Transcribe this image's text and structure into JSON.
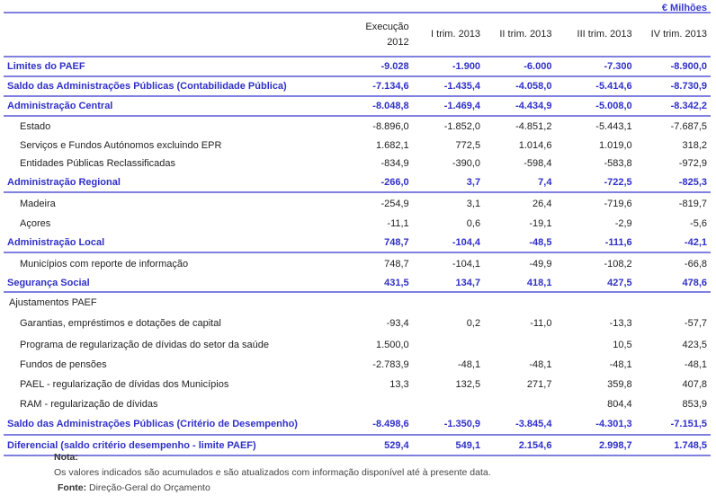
{
  "unit": "€ Milhões",
  "columns": [
    "",
    "Execução 2012",
    "I trim. 2013",
    "II trim. 2013",
    "III trim. 2013",
    "IV trim. 2013"
  ],
  "rows": [
    {
      "label": "Limites do PAEF",
      "style": "blue",
      "values": [
        "-9.028",
        "-1.900",
        "-6.000",
        "-7.300",
        "-8.900,0"
      ]
    },
    {
      "label": "Saldo das Administrações Públicas (Contabilidade Pública)",
      "style": "blue",
      "values": [
        "-7.134,6",
        "-1.435,4",
        "-4.058,0",
        "-5.414,6",
        "-8.730,9"
      ]
    },
    {
      "label": "Administração Central",
      "style": "blue",
      "values": [
        "-8.048,8",
        "-1.469,4",
        "-4.434,9",
        "-5.008,0",
        "-8.342,2"
      ]
    },
    {
      "label": "Estado",
      "style": "sub",
      "values": [
        "-8.896,0",
        "-1.852,0",
        "-4.851,2",
        "-5.443,1",
        "-7.687,5"
      ]
    },
    {
      "label": "Serviços e Fundos Autónomos excluindo EPR",
      "style": "sub",
      "values": [
        "1.682,1",
        "772,5",
        "1.014,6",
        "1.019,0",
        "318,2"
      ]
    },
    {
      "label": "Entidades Públicas Reclassificadas",
      "style": "sub",
      "values": [
        "-834,9",
        "-390,0",
        "-598,4",
        "-583,8",
        "-972,9"
      ]
    },
    {
      "label": "Administração Regional",
      "style": "blue",
      "values": [
        "-266,0",
        "3,7",
        "7,4",
        "-722,5",
        "-825,3"
      ]
    },
    {
      "label": "Madeira",
      "style": "sub",
      "values": [
        "-254,9",
        "3,1",
        "26,4",
        "-719,6",
        "-819,7"
      ]
    },
    {
      "label": "Açores",
      "style": "sub",
      "values": [
        "-11,1",
        "0,6",
        "-19,1",
        "-2,9",
        "-5,6"
      ]
    },
    {
      "label": "Administração Local",
      "style": "blue",
      "values": [
        "748,7",
        "-104,4",
        "-48,5",
        "-111,6",
        "-42,1"
      ]
    },
    {
      "label": "Municípios com reporte de informação",
      "style": "sub",
      "values": [
        "748,7",
        "-104,1",
        "-49,9",
        "-108,2",
        "-66,8"
      ]
    },
    {
      "label": "Segurança Social",
      "style": "blue",
      "values": [
        "431,5",
        "134,7",
        "418,1",
        "427,5",
        "478,6"
      ]
    },
    {
      "label": "Ajustamentos PAEF",
      "style": "plain",
      "values": [
        "",
        "",
        "",
        "",
        ""
      ]
    },
    {
      "label": "Garantias,  empréstimos e dotações de capital",
      "style": "sub",
      "values": [
        "-93,4",
        "0,2",
        "-11,0",
        "-13,3",
        "-57,7"
      ]
    },
    {
      "label": "Programa de regularização de dívidas do setor da saúde",
      "style": "sub",
      "values": [
        "1.500,0",
        "",
        "",
        "10,5",
        "423,5"
      ]
    },
    {
      "label": "Fundos de pensões",
      "style": "sub",
      "values": [
        "-2.783,9",
        "-48,1",
        "-48,1",
        "-48,1",
        "-48,1"
      ]
    },
    {
      "label": "PAEL - regularização de dívidas dos Municípios",
      "style": "sub",
      "values": [
        "13,3",
        "132,5",
        "271,7",
        "359,8",
        "407,8"
      ]
    },
    {
      "label": "RAM - regularização de dívidas",
      "style": "sub",
      "values": [
        "",
        "",
        "",
        "804,4",
        "853,9"
      ]
    },
    {
      "label": "Saldo das Administrações Públicas (Critério de Desempenho)",
      "style": "blue",
      "values": [
        "-8.498,6",
        "-1.350,9",
        "-3.845,4",
        "-4.301,3",
        "-7.151,5"
      ]
    },
    {
      "label": "Diferencial (saldo critério desempenho - limite PAEF)",
      "style": "blue",
      "values": [
        "529,4",
        "549,1",
        "2.154,6",
        "2.998,7",
        "1.748,5"
      ]
    }
  ],
  "note": {
    "title": "Nota:",
    "text": "Os valores indicados são acumulados e são atualizados com informação disponível até à presente data.",
    "source_label": "Fonte:",
    "source": "Direção-Geral do Orçamento"
  },
  "colors": {
    "accent": "#3030c8",
    "rule": "#8080e0"
  }
}
